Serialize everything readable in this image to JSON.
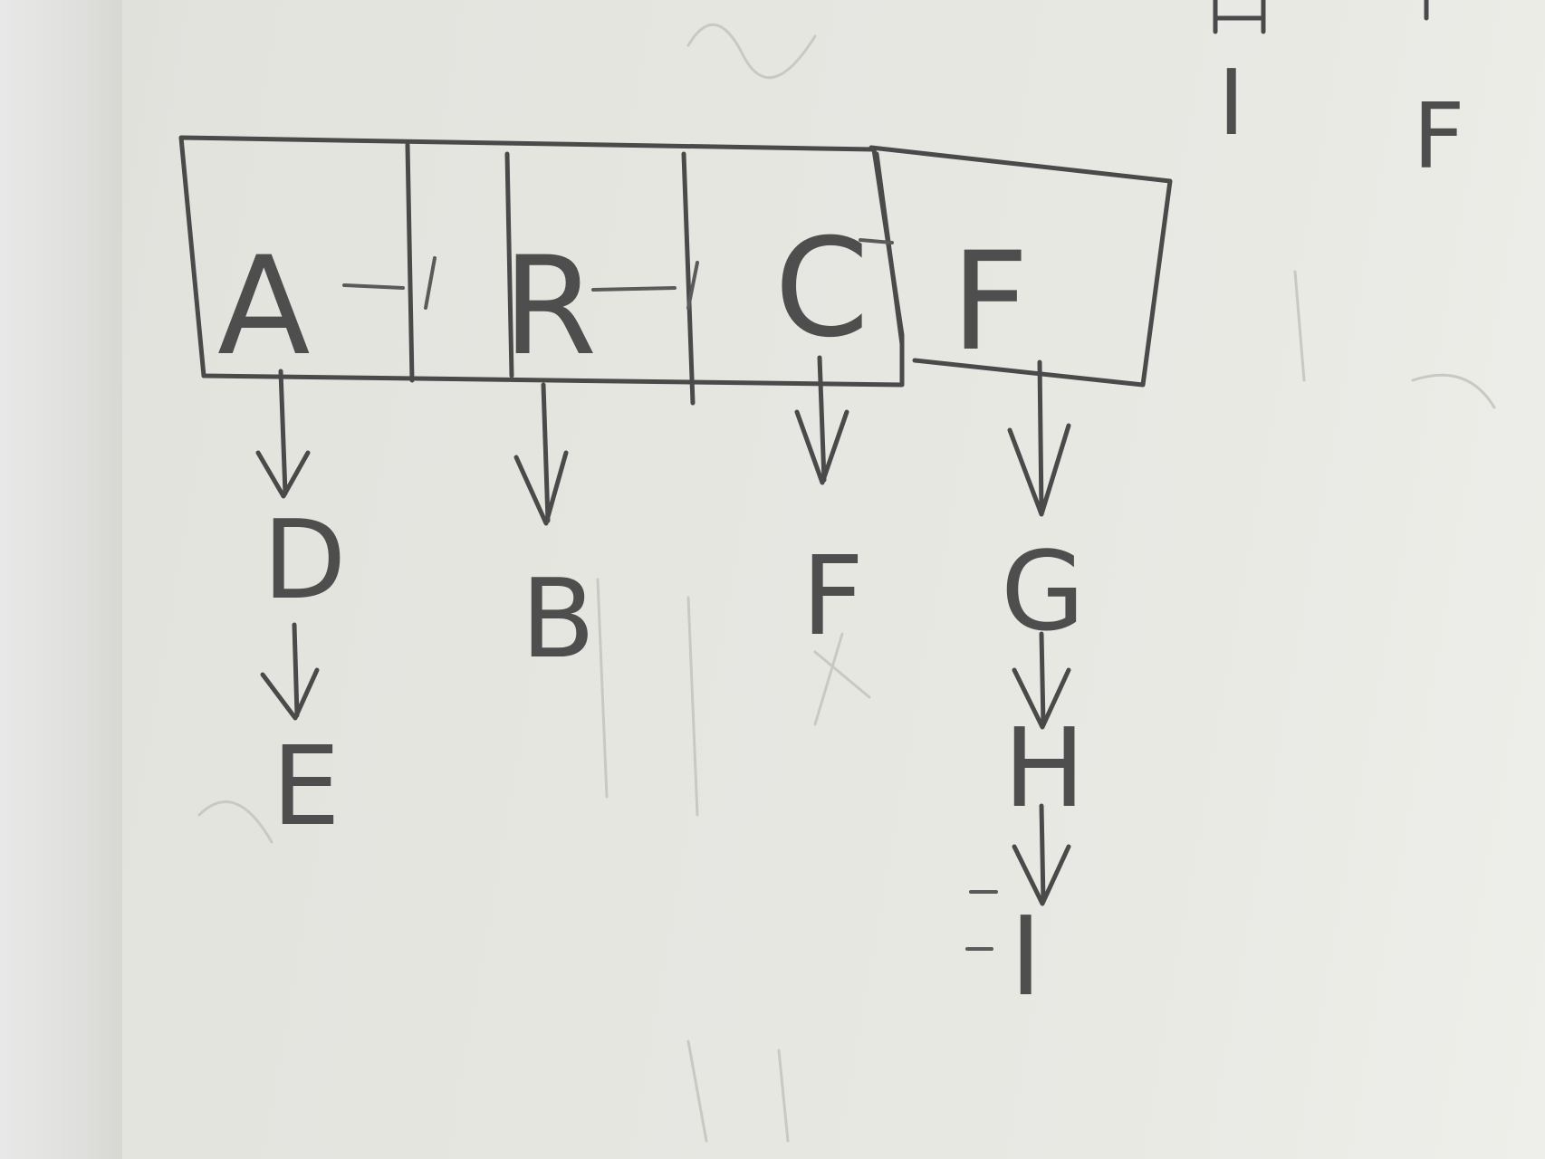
{
  "array_cells": [
    {
      "label": "A"
    },
    {
      "label": "R"
    },
    {
      "label": "C"
    },
    {
      "label": "F"
    }
  ],
  "chains": [
    {
      "nodes": [
        "D",
        "E"
      ]
    },
    {
      "nodes": [
        "B"
      ]
    },
    {
      "nodes": [
        "F"
      ]
    },
    {
      "nodes": [
        "G",
        "H",
        "I"
      ]
    }
  ],
  "corner_marks": [
    "I",
    "F"
  ],
  "colors": {
    "ink": "#4a4a4a",
    "paper": "#e6e6e1"
  }
}
